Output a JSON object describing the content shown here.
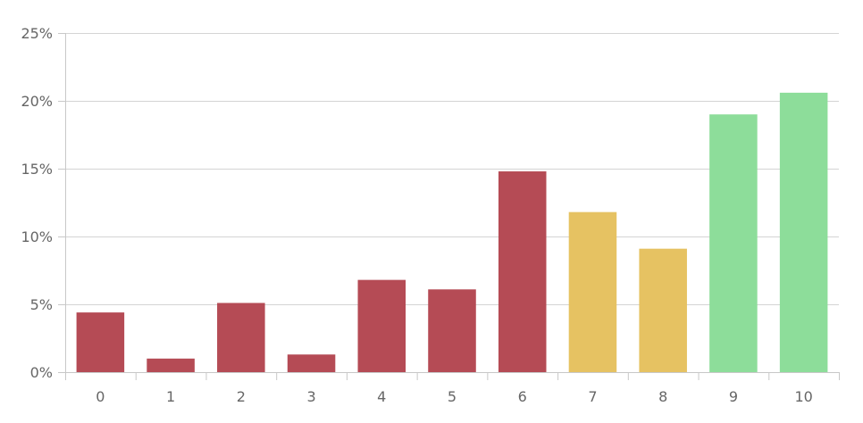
{
  "chart_data": {
    "type": "bar",
    "categories": [
      "0",
      "1",
      "2",
      "3",
      "4",
      "5",
      "6",
      "7",
      "8",
      "9",
      "10"
    ],
    "values": [
      4.4,
      1.0,
      5.1,
      1.3,
      6.8,
      6.1,
      14.8,
      11.8,
      9.1,
      19.0,
      20.6
    ],
    "colors": [
      "#b54b55",
      "#b54b55",
      "#b54b55",
      "#b54b55",
      "#b54b55",
      "#b54b55",
      "#b54b55",
      "#e6c262",
      "#e6c262",
      "#8ddd9a",
      "#8ddd9a"
    ],
    "ylim": [
      0,
      25
    ],
    "yticks": [
      "0%",
      "5%",
      "10%",
      "15%",
      "20%",
      "25%"
    ],
    "ytick_values": [
      0,
      5,
      10,
      15,
      20,
      25
    ],
    "grid": true,
    "legend": "none"
  }
}
